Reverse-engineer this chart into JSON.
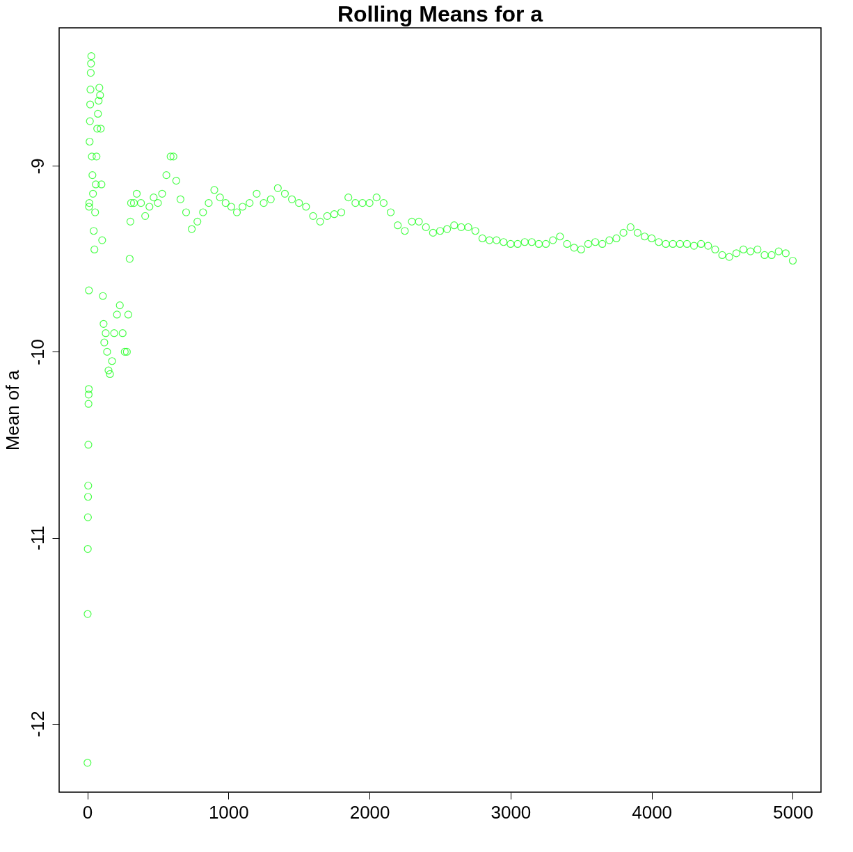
{
  "chart_data": {
    "type": "scatter",
    "title": "Rolling Means for a",
    "ylabel": "Mean of a",
    "xlim": [
      -200,
      5200
    ],
    "ylim": [
      -12.368,
      -8.258
    ],
    "xticks": [
      0,
      1000,
      2000,
      3000,
      4000,
      5000
    ],
    "yticks": [
      -12,
      -11,
      -10,
      -9
    ],
    "grid": false,
    "legend": false,
    "marker": "circle",
    "series": [
      {
        "color": "#00ff00",
        "x": [
          1,
          2,
          3,
          4,
          5,
          6,
          7,
          8,
          9,
          10,
          11,
          12,
          14,
          16,
          18,
          20,
          22,
          24,
          26,
          28,
          32,
          36,
          40,
          45,
          50,
          55,
          60,
          65,
          70,
          75,
          80,
          85,
          90,
          95,
          100,
          105,
          110,
          115,
          120,
          130,
          140,
          150,
          160,
          175,
          190,
          210,
          230,
          250,
          265,
          280,
          290,
          300,
          305,
          310,
          330,
          350,
          380,
          410,
          440,
          470,
          500,
          530,
          560,
          590,
          610,
          630,
          660,
          700,
          740,
          780,
          820,
          860,
          900,
          940,
          980,
          1020,
          1060,
          1100,
          1150,
          1200,
          1250,
          1300,
          1350,
          1400,
          1450,
          1500,
          1550,
          1600,
          1650,
          1700,
          1750,
          1800,
          1850,
          1900,
          1950,
          2000,
          2050,
          2100,
          2150,
          2200,
          2250,
          2300,
          2350,
          2400,
          2450,
          2500,
          2550,
          2600,
          2650,
          2700,
          2750,
          2800,
          2850,
          2900,
          2950,
          3000,
          3050,
          3100,
          3150,
          3200,
          3250,
          3300,
          3350,
          3400,
          3450,
          3500,
          3550,
          3600,
          3650,
          3700,
          3750,
          3800,
          3850,
          3900,
          3950,
          4000,
          4050,
          4100,
          4150,
          4200,
          4250,
          4300,
          4350,
          4400,
          4450,
          4500,
          4550,
          4600,
          4650,
          4700,
          4750,
          4800,
          4850,
          4900,
          4950,
          5000
        ],
        "values": [
          -12.21,
          -11.41,
          -11.06,
          -10.89,
          -10.78,
          -10.72,
          -10.5,
          -10.28,
          -10.23,
          -10.2,
          -9.67,
          -9.22,
          -9.2,
          -8.87,
          -8.76,
          -8.67,
          -8.59,
          -8.5,
          -8.45,
          -8.41,
          -8.95,
          -9.05,
          -9.15,
          -9.35,
          -9.45,
          -9.25,
          -9.1,
          -8.95,
          -8.8,
          -8.72,
          -8.65,
          -8.58,
          -8.62,
          -8.8,
          -9.1,
          -9.4,
          -9.7,
          -9.85,
          -9.95,
          -9.9,
          -10.0,
          -10.1,
          -10.12,
          -10.05,
          -9.9,
          -9.8,
          -9.75,
          -9.9,
          -10.0,
          -10.0,
          -9.8,
          -9.5,
          -9.3,
          -9.2,
          -9.2,
          -9.15,
          -9.2,
          -9.27,
          -9.22,
          -9.17,
          -9.2,
          -9.15,
          -9.05,
          -8.95,
          -8.95,
          -9.08,
          -9.18,
          -9.25,
          -9.34,
          -9.3,
          -9.25,
          -9.2,
          -9.13,
          -9.17,
          -9.2,
          -9.22,
          -9.25,
          -9.22,
          -9.2,
          -9.15,
          -9.2,
          -9.18,
          -9.12,
          -9.15,
          -9.18,
          -9.2,
          -9.22,
          -9.27,
          -9.3,
          -9.27,
          -9.26,
          -9.25,
          -9.17,
          -9.2,
          -9.2,
          -9.2,
          -9.17,
          -9.2,
          -9.25,
          -9.32,
          -9.35,
          -9.3,
          -9.3,
          -9.33,
          -9.36,
          -9.35,
          -9.34,
          -9.32,
          -9.33,
          -9.33,
          -9.35,
          -9.39,
          -9.4,
          -9.4,
          -9.41,
          -9.42,
          -9.42,
          -9.41,
          -9.41,
          -9.42,
          -9.42,
          -9.4,
          -9.38,
          -9.42,
          -9.44,
          -9.45,
          -9.42,
          -9.41,
          -9.42,
          -9.4,
          -9.39,
          -9.36,
          -9.33,
          -9.36,
          -9.38,
          -9.39,
          -9.41,
          -9.42,
          -9.42,
          -9.42,
          -9.42,
          -9.43,
          -9.42,
          -9.43,
          -9.45,
          -9.48,
          -9.49,
          -9.47,
          -9.45,
          -9.46,
          -9.45,
          -9.48,
          -9.48,
          -9.46,
          -9.47,
          -9.51
        ]
      }
    ]
  }
}
